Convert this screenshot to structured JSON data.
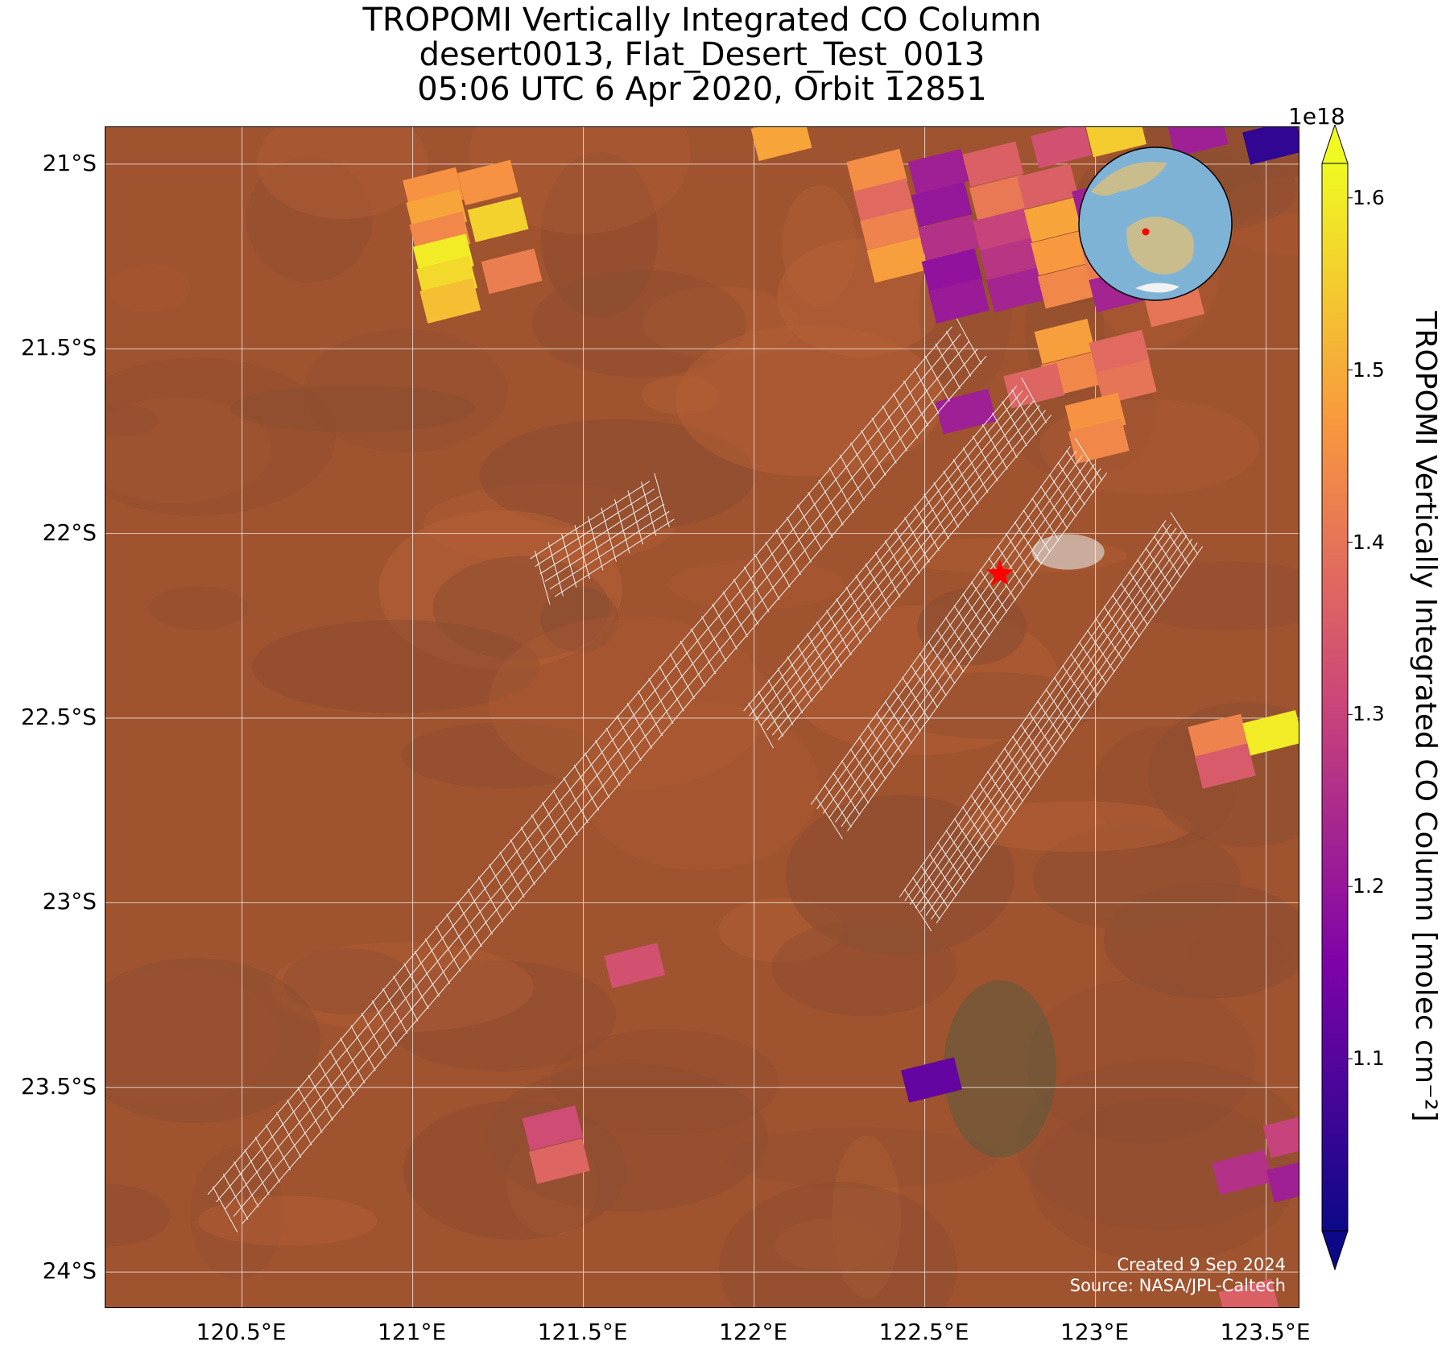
{
  "title": {
    "line1": "TROPOMI Vertically Integrated CO Column",
    "line2": "desert0013, Flat_Desert_Test_0013",
    "line3": "05:06 UTC 6 Apr 2020, Orbit 12851"
  },
  "map": {
    "lon_range": [
      120.1,
      123.6
    ],
    "lat_range": [
      -24.1,
      -20.9
    ],
    "lat_ticks": [
      {
        "value": -21,
        "label": "21°S"
      },
      {
        "value": -21.5,
        "label": "21.5°S"
      },
      {
        "value": -22,
        "label": "22°S"
      },
      {
        "value": -22.5,
        "label": "22.5°S"
      },
      {
        "value": -23,
        "label": "23°S"
      },
      {
        "value": -23.5,
        "label": "23.5°S"
      },
      {
        "value": -24,
        "label": "24°S"
      }
    ],
    "lon_ticks": [
      {
        "value": 120.5,
        "label": "120.5°E"
      },
      {
        "value": 121,
        "label": "121°E"
      },
      {
        "value": 121.5,
        "label": "121.5°E"
      },
      {
        "value": 122,
        "label": "122°E"
      },
      {
        "value": 122.5,
        "label": "122.5°E"
      },
      {
        "value": 123,
        "label": "123°E"
      },
      {
        "value": 123.5,
        "label": "123.5°E"
      }
    ],
    "target_marker": {
      "lon": 122.72,
      "lat": -22.11,
      "color": "#ff0000"
    },
    "background_colors": {
      "base": "#a0532f",
      "dark": "#7d4a33",
      "light": "#c46a3c"
    },
    "inset_globe": {
      "ocean": "#7fb3d5",
      "land": "#c9bd8e",
      "ice": "#f2f2f2",
      "marker_color": "#ff0000"
    },
    "credit_line1": "Created 9 Sep 2024",
    "credit_line2": "Source: NASA/JPL-Caltech"
  },
  "colorbar": {
    "label": "TROPOMI Vertically Integrated CO Column [molec cm⁻²]",
    "multiplier": "1e18",
    "min": 1.0,
    "max": 1.62,
    "extend": "both",
    "colormap": "plasma",
    "ticks": [
      "1.1",
      "1.2",
      "1.3",
      "1.4",
      "1.5",
      "1.6"
    ],
    "tick_values": [
      1.1,
      1.2,
      1.3,
      1.4,
      1.5,
      1.6
    ]
  },
  "co_pixels": [
    {
      "lon": 121.06,
      "lat": -21.07,
      "value": 1.46
    },
    {
      "lon": 121.07,
      "lat": -21.13,
      "value": 1.49
    },
    {
      "lon": 121.08,
      "lat": -21.19,
      "value": 1.44
    },
    {
      "lon": 121.09,
      "lat": -21.25,
      "value": 1.6
    },
    {
      "lon": 121.1,
      "lat": -21.31,
      "value": 1.57
    },
    {
      "lon": 121.11,
      "lat": -21.37,
      "value": 1.53
    },
    {
      "lon": 121.22,
      "lat": -21.05,
      "value": 1.46
    },
    {
      "lon": 121.25,
      "lat": -21.15,
      "value": 1.56
    },
    {
      "lon": 121.29,
      "lat": -21.29,
      "value": 1.42
    },
    {
      "lon": 122.08,
      "lat": -20.93,
      "value": 1.49
    },
    {
      "lon": 122.36,
      "lat": -21.02,
      "value": 1.45
    },
    {
      "lon": 122.38,
      "lat": -21.1,
      "value": 1.38
    },
    {
      "lon": 122.4,
      "lat": -21.18,
      "value": 1.43
    },
    {
      "lon": 122.42,
      "lat": -21.26,
      "value": 1.48
    },
    {
      "lon": 122.54,
      "lat": -21.02,
      "value": 1.22
    },
    {
      "lon": 122.55,
      "lat": -21.11,
      "value": 1.2
    },
    {
      "lon": 122.57,
      "lat": -21.2,
      "value": 1.26
    },
    {
      "lon": 122.58,
      "lat": -21.29,
      "value": 1.19
    },
    {
      "lon": 122.6,
      "lat": -21.37,
      "value": 1.21
    },
    {
      "lon": 122.7,
      "lat": -21.0,
      "value": 1.36
    },
    {
      "lon": 122.72,
      "lat": -21.09,
      "value": 1.41
    },
    {
      "lon": 122.73,
      "lat": -21.18,
      "value": 1.3
    },
    {
      "lon": 122.75,
      "lat": -21.26,
      "value": 1.27
    },
    {
      "lon": 122.77,
      "lat": -21.34,
      "value": 1.23
    },
    {
      "lon": 122.86,
      "lat": -21.06,
      "value": 1.36
    },
    {
      "lon": 122.88,
      "lat": -21.15,
      "value": 1.49
    },
    {
      "lon": 122.9,
      "lat": -21.24,
      "value": 1.47
    },
    {
      "lon": 122.92,
      "lat": -21.33,
      "value": 1.44
    },
    {
      "lon": 123.02,
      "lat": -21.1,
      "value": 1.22
    },
    {
      "lon": 123.04,
      "lat": -21.18,
      "value": 1.3
    },
    {
      "lon": 123.05,
      "lat": -21.26,
      "value": 1.42
    },
    {
      "lon": 123.07,
      "lat": -21.34,
      "value": 1.23
    },
    {
      "lon": 123.18,
      "lat": -21.14,
      "value": 1.37
    },
    {
      "lon": 123.2,
      "lat": -21.22,
      "value": 1.41
    },
    {
      "lon": 123.21,
      "lat": -21.3,
      "value": 1.49
    },
    {
      "lon": 123.23,
      "lat": -21.38,
      "value": 1.4
    },
    {
      "lon": 122.9,
      "lat": -20.95,
      "value": 1.33
    },
    {
      "lon": 123.06,
      "lat": -20.92,
      "value": 1.55
    },
    {
      "lon": 123.3,
      "lat": -20.92,
      "value": 1.22
    },
    {
      "lon": 123.52,
      "lat": -20.94,
      "value": 1.05
    },
    {
      "lon": 122.91,
      "lat": -21.48,
      "value": 1.48
    },
    {
      "lon": 122.93,
      "lat": -21.57,
      "value": 1.44
    },
    {
      "lon": 123.07,
      "lat": -21.51,
      "value": 1.38
    },
    {
      "lon": 123.09,
      "lat": -21.59,
      "value": 1.4
    },
    {
      "lon": 122.62,
      "lat": -21.67,
      "value": 1.22
    },
    {
      "lon": 122.82,
      "lat": -21.6,
      "value": 1.37
    },
    {
      "lon": 123.0,
      "lat": -21.68,
      "value": 1.46
    },
    {
      "lon": 123.01,
      "lat": -21.75,
      "value": 1.44
    },
    {
      "lon": 123.36,
      "lat": -22.55,
      "value": 1.43
    },
    {
      "lon": 123.38,
      "lat": -22.63,
      "value": 1.35
    },
    {
      "lon": 123.52,
      "lat": -22.54,
      "value": 1.6
    },
    {
      "lon": 121.65,
      "lat": -23.17,
      "value": 1.33
    },
    {
      "lon": 121.41,
      "lat": -23.61,
      "value": 1.32
    },
    {
      "lon": 121.43,
      "lat": -23.7,
      "value": 1.37
    },
    {
      "lon": 122.52,
      "lat": -23.48,
      "value": 1.12
    },
    {
      "lon": 123.43,
      "lat": -23.73,
      "value": 1.26
    },
    {
      "lon": 123.58,
      "lat": -23.63,
      "value": 1.3
    },
    {
      "lon": 123.59,
      "lat": -23.75,
      "value": 1.22
    },
    {
      "lon": 123.45,
      "lat": -24.08,
      "value": 1.36
    }
  ],
  "footprint_swaths": [
    {
      "start": [
        120.45,
        -23.83
      ],
      "end": [
        122.63,
        -21.48
      ],
      "crossing_steps": 4,
      "along_steps": 70
    },
    {
      "start": [
        121.38,
        -22.12
      ],
      "end": [
        121.73,
        -21.91
      ],
      "crossing_steps": 5,
      "along_steps": 9
    },
    {
      "start": [
        122.02,
        -22.52
      ],
      "end": [
        122.82,
        -21.64
      ],
      "crossing_steps": 6,
      "along_steps": 28
    },
    {
      "start": [
        122.22,
        -22.77
      ],
      "end": [
        122.98,
        -21.8
      ],
      "crossing_steps": 6,
      "along_steps": 30
    },
    {
      "start": [
        122.48,
        -23.02
      ],
      "end": [
        123.26,
        -22.0
      ],
      "crossing_steps": 7,
      "along_steps": 32
    }
  ]
}
